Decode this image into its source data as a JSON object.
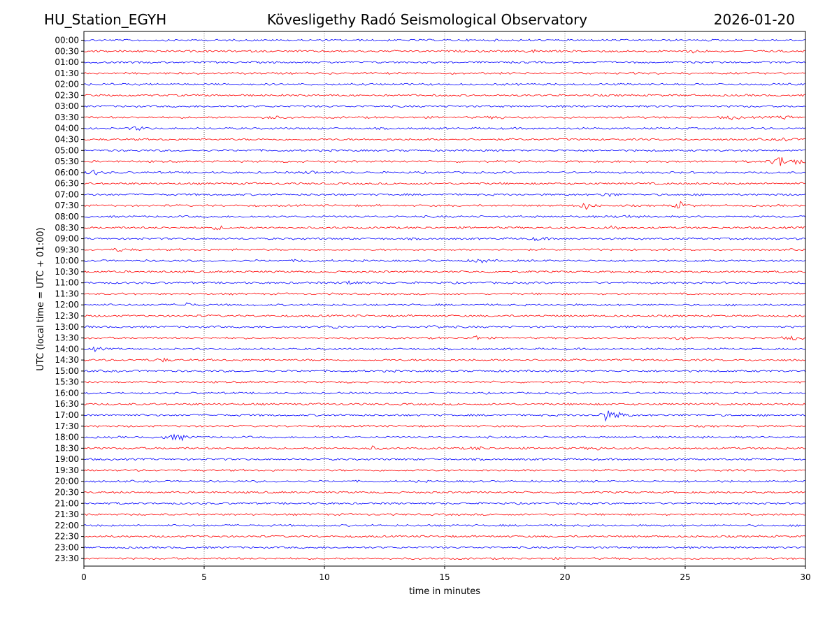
{
  "header": {
    "station": "HU_Station_EGYH",
    "observatory": "Kövesligethy Radó Seismological Observatory",
    "date": "2026-01-20"
  },
  "chart_data": {
    "type": "line",
    "title": "Kövesligethy Radó Seismological Observatory",
    "xlabel": "time in minutes",
    "ylabel": "UTC (local time = UTC + 01:00)",
    "xlim": [
      0,
      30
    ],
    "x_ticks": [
      "0",
      "5",
      "10",
      "15",
      "20",
      "25",
      "30"
    ],
    "x_tick_values": [
      0,
      5,
      10,
      15,
      20,
      25,
      30
    ],
    "grid": "vertical dotted lines at each x tick",
    "colors": {
      "even_rows": "#0000ff",
      "odd_rows": "#ff0000"
    },
    "rows": [
      {
        "label": "00:00",
        "events": []
      },
      {
        "label": "00:30",
        "events": [
          {
            "t": 18.6,
            "amp": 0.3
          },
          {
            "t": 25.4,
            "amp": 0.3
          }
        ]
      },
      {
        "label": "01:00",
        "events": []
      },
      {
        "label": "01:30",
        "events": []
      },
      {
        "label": "02:00",
        "events": []
      },
      {
        "label": "02:30",
        "events": []
      },
      {
        "label": "03:00",
        "events": []
      },
      {
        "label": "03:30",
        "events": [
          {
            "t": 7.8,
            "amp": 0.35
          },
          {
            "t": 17.2,
            "amp": 0.3
          },
          {
            "t": 27.0,
            "amp": 0.4
          },
          {
            "t": 29.2,
            "amp": 0.35
          }
        ]
      },
      {
        "label": "04:00",
        "events": [
          {
            "t": 2.3,
            "amp": 0.35
          }
        ]
      },
      {
        "label": "04:30",
        "events": [
          {
            "t": 29.1,
            "amp": 0.3
          }
        ]
      },
      {
        "label": "05:00",
        "events": []
      },
      {
        "label": "05:30",
        "events": [
          {
            "t": 28.9,
            "amp": 1.2
          },
          {
            "t": 29.6,
            "amp": 0.6
          }
        ]
      },
      {
        "label": "06:00",
        "events": [
          {
            "t": 0.4,
            "amp": 0.45
          },
          {
            "t": 9.5,
            "amp": 0.3
          }
        ]
      },
      {
        "label": "06:30",
        "events": []
      },
      {
        "label": "07:00",
        "events": [
          {
            "t": 21.8,
            "amp": 0.4
          }
        ]
      },
      {
        "label": "07:30",
        "events": [
          {
            "t": 20.9,
            "amp": 0.6
          },
          {
            "t": 24.8,
            "amp": 0.6
          }
        ]
      },
      {
        "label": "08:00",
        "events": [
          {
            "t": 22.5,
            "amp": 0.3
          }
        ]
      },
      {
        "label": "08:30",
        "events": [
          {
            "t": 5.6,
            "amp": 0.35
          },
          {
            "t": 22.0,
            "amp": 0.4
          }
        ]
      },
      {
        "label": "09:00",
        "events": [
          {
            "t": 18.9,
            "amp": 0.35
          }
        ]
      },
      {
        "label": "09:30",
        "events": [
          {
            "t": 1.5,
            "amp": 0.3
          }
        ]
      },
      {
        "label": "10:00",
        "events": [
          {
            "t": 9.2,
            "amp": 0.35
          },
          {
            "t": 16.5,
            "amp": 0.4
          }
        ]
      },
      {
        "label": "10:30",
        "events": []
      },
      {
        "label": "11:00",
        "events": [
          {
            "t": 11.1,
            "amp": 0.45
          }
        ]
      },
      {
        "label": "11:30",
        "events": []
      },
      {
        "label": "12:00",
        "events": [
          {
            "t": 4.3,
            "amp": 0.35
          }
        ]
      },
      {
        "label": "12:30",
        "events": []
      },
      {
        "label": "13:00",
        "events": [
          {
            "t": 10.4,
            "amp": 0.3
          },
          {
            "t": 14.6,
            "amp": 0.3
          }
        ]
      },
      {
        "label": "13:30",
        "events": [
          {
            "t": 16.3,
            "amp": 0.35
          },
          {
            "t": 24.8,
            "amp": 0.3
          },
          {
            "t": 29.5,
            "amp": 0.35
          }
        ]
      },
      {
        "label": "14:00",
        "events": [
          {
            "t": 0.5,
            "amp": 0.3
          }
        ]
      },
      {
        "label": "14:30",
        "events": [
          {
            "t": 3.2,
            "amp": 0.4
          }
        ]
      },
      {
        "label": "15:00",
        "events": []
      },
      {
        "label": "15:30",
        "events": []
      },
      {
        "label": "16:00",
        "events": []
      },
      {
        "label": "16:30",
        "events": []
      },
      {
        "label": "17:00",
        "events": [
          {
            "t": 21.7,
            "amp": 1.0
          },
          {
            "t": 22.3,
            "amp": 0.5
          }
        ]
      },
      {
        "label": "17:30",
        "events": []
      },
      {
        "label": "18:00",
        "events": [
          {
            "t": 3.6,
            "amp": 0.55
          },
          {
            "t": 4.1,
            "amp": 0.4
          }
        ]
      },
      {
        "label": "18:30",
        "events": [
          {
            "t": 12.0,
            "amp": 0.3
          },
          {
            "t": 16.4,
            "amp": 0.3
          },
          {
            "t": 21.3,
            "amp": 0.3
          }
        ]
      },
      {
        "label": "19:00",
        "events": []
      },
      {
        "label": "19:30",
        "events": []
      },
      {
        "label": "20:00",
        "events": []
      },
      {
        "label": "20:30",
        "events": []
      },
      {
        "label": "21:00",
        "events": []
      },
      {
        "label": "21:30",
        "events": []
      },
      {
        "label": "22:00",
        "events": []
      },
      {
        "label": "22:30",
        "events": []
      },
      {
        "label": "23:00",
        "events": []
      },
      {
        "label": "23:30",
        "events": []
      }
    ]
  }
}
